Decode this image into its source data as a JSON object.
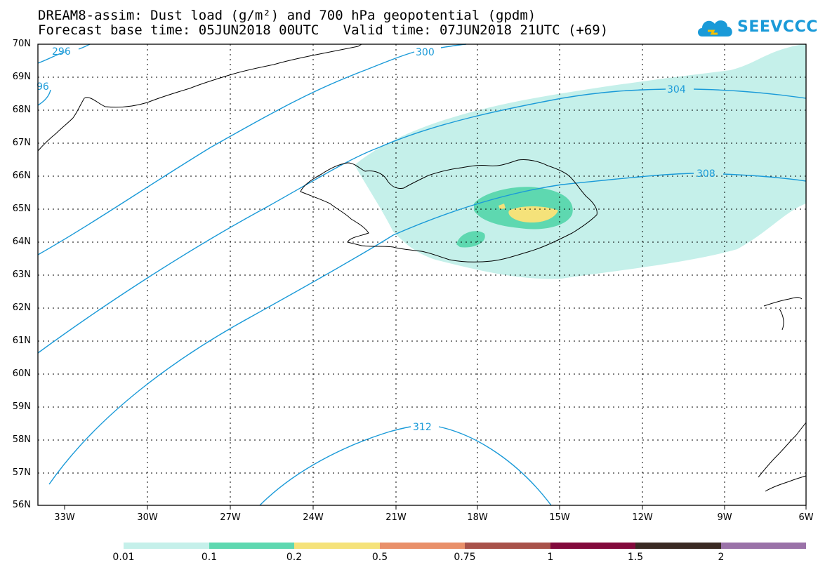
{
  "title_line1": "DREAM8-assim: Dust load (g/m²) and 700 hPa geopotential (gpdm)",
  "title_line2": "Forecast base time: 05JUN2018 00UTC   Valid time: 07JUN2018 21UTC (+69)",
  "logo_text": "SEEVCCC",
  "lat_labels": [
    "70N",
    "69N",
    "68N",
    "67N",
    "66N",
    "65N",
    "64N",
    "63N",
    "62N",
    "61N",
    "60N",
    "59N",
    "58N",
    "57N",
    "56N"
  ],
  "lon_labels": [
    "33W",
    "30W",
    "27W",
    "24W",
    "21W",
    "18W",
    "15W",
    "12W",
    "9W",
    "6W"
  ],
  "contour_labels": [
    "296",
    "96",
    "300",
    "304",
    "308",
    "312"
  ],
  "legend_labels": [
    "0.01",
    "0.1",
    "0.2",
    "0.5",
    "0.75",
    "1",
    "1.5",
    "2"
  ],
  "legend_colors": [
    "#c5f0ea",
    "#5ed8b0",
    "#f5e27a",
    "#e9906a",
    "#a8524a",
    "#820a3c",
    "#3a2a24",
    "#9a72a8"
  ],
  "contour_color": "#1a9ad8"
}
